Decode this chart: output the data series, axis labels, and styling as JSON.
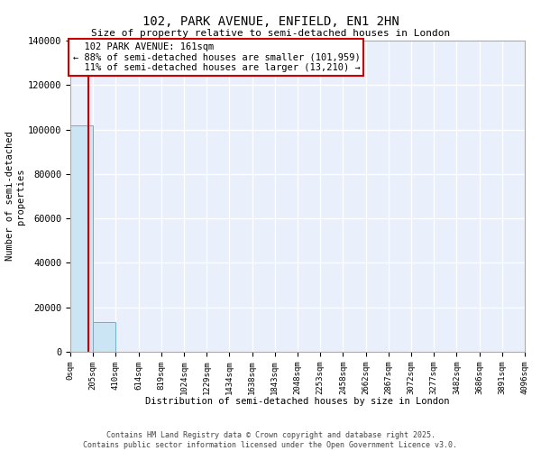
{
  "title": "102, PARK AVENUE, ENFIELD, EN1 2HN",
  "subtitle": "Size of property relative to semi-detached houses in London",
  "xlabel": "Distribution of semi-detached houses by size in London",
  "ylabel": "Number of semi-detached\nproperties",
  "property_size": 161,
  "property_label": "102 PARK AVENUE: 161sqm",
  "pct_smaller": 88,
  "count_smaller": 101959,
  "pct_larger": 11,
  "count_larger": 13210,
  "bar_color": "#cce5f5",
  "bar_edge_color": "#6baed6",
  "red_line_color": "#cc0000",
  "annotation_box_color": "#cc0000",
  "background_color": "#eaf0fb",
  "ylim": [
    0,
    140000
  ],
  "bins": [
    0,
    205,
    410,
    614,
    819,
    1024,
    1229,
    1434,
    1638,
    1843,
    2048,
    2253,
    2458,
    2662,
    2867,
    3072,
    3277,
    3482,
    3686,
    3891,
    4096
  ],
  "bin_labels": [
    "0sqm",
    "205sqm",
    "410sqm",
    "614sqm",
    "819sqm",
    "1024sqm",
    "1229sqm",
    "1434sqm",
    "1638sqm",
    "1843sqm",
    "2048sqm",
    "2253sqm",
    "2458sqm",
    "2662sqm",
    "2867sqm",
    "3072sqm",
    "3277sqm",
    "3482sqm",
    "3686sqm",
    "3891sqm",
    "4096sqm"
  ],
  "counts": [
    101959,
    13210,
    0,
    0,
    0,
    0,
    0,
    0,
    0,
    0,
    0,
    0,
    0,
    0,
    0,
    0,
    0,
    0,
    0,
    0
  ],
  "footer_line1": "Contains HM Land Registry data © Crown copyright and database right 2025.",
  "footer_line2": "Contains public sector information licensed under the Open Government Licence v3.0."
}
